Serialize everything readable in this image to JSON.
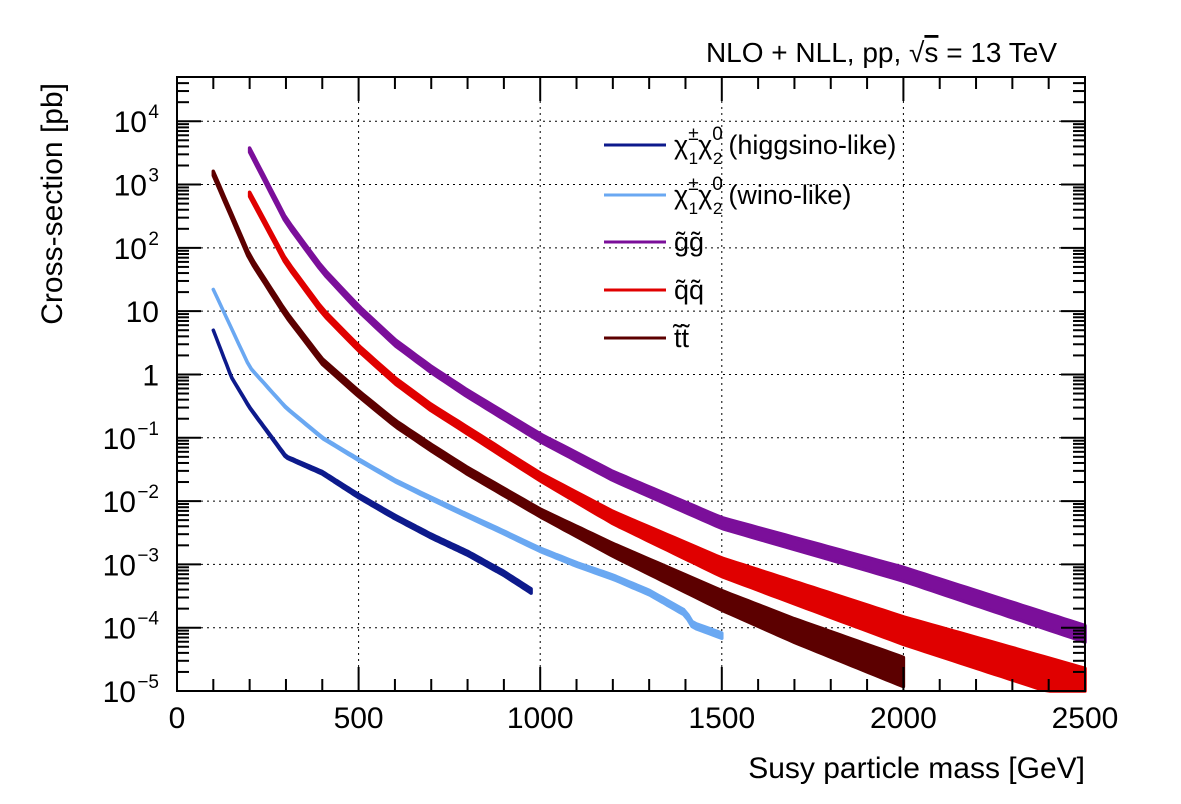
{
  "title_parts": {
    "prefix": "NLO + NLL, pp, ",
    "sqrt": "√",
    "s": "s",
    "suffix": " = 13 TeV"
  },
  "chart_data": {
    "type": "line",
    "xlabel": "Susy particle mass [GeV]",
    "ylabel": "Cross-section [pb]",
    "xlim": [
      0,
      2500
    ],
    "ylim": [
      1e-05,
      50000.0
    ],
    "yscale": "log",
    "grid": true,
    "legend_position": "top-right",
    "x_ticks": [
      {
        "value": 0,
        "label": "0"
      },
      {
        "value": 500,
        "label": "500"
      },
      {
        "value": 1000,
        "label": "1000"
      },
      {
        "value": 1500,
        "label": "1500"
      },
      {
        "value": 2000,
        "label": "2000"
      },
      {
        "value": 2500,
        "label": "2500"
      }
    ],
    "y_ticks": [
      {
        "value": 1e-05,
        "base": "10",
        "exp": "−5"
      },
      {
        "value": 0.0001,
        "base": "10",
        "exp": "−4"
      },
      {
        "value": 0.001,
        "base": "10",
        "exp": "−3"
      },
      {
        "value": 0.01,
        "base": "10",
        "exp": "−2"
      },
      {
        "value": 0.1,
        "base": "10",
        "exp": "−1"
      },
      {
        "value": 1,
        "base": "1",
        "exp": ""
      },
      {
        "value": 10,
        "base": "10",
        "exp": ""
      },
      {
        "value": 100,
        "base": "10",
        "exp": "2"
      },
      {
        "value": 1000,
        "base": "10",
        "exp": "3"
      },
      {
        "value": 10000,
        "base": "10",
        "exp": "4"
      }
    ],
    "series": [
      {
        "key": "higgsino",
        "name": "χ̃₁±χ̃₂⁰ (higgsino-like)",
        "legend_sym": "χ",
        "legend_sup1": "±",
        "legend_sub1": "1",
        "legend_sup2": "0",
        "legend_sub2": "2",
        "legend_suffix": "(higgsino-like)",
        "color": "#0d1a8c",
        "points": [
          [
            100,
            5.0
          ],
          [
            150,
            0.9
          ],
          [
            200,
            0.3
          ],
          [
            300,
            0.05
          ],
          [
            400,
            0.028
          ],
          [
            500,
            0.012
          ],
          [
            600,
            0.0056
          ],
          [
            700,
            0.0028
          ],
          [
            800,
            0.0015
          ],
          [
            900,
            0.00072
          ],
          [
            975,
            0.00038
          ]
        ],
        "band": [
          [
            100,
            1.0
          ],
          [
            500,
            1.06
          ],
          [
            975,
            1.08
          ]
        ]
      },
      {
        "key": "wino",
        "name": "χ̃₁±χ̃₂⁰ (wino-like)",
        "legend_sym": "χ",
        "legend_sup1": "±",
        "legend_sub1": "1",
        "legend_sup2": "0",
        "legend_sub2": "2",
        "legend_suffix": "(wino-like)",
        "color": "#6aa8f2",
        "points": [
          [
            100,
            22
          ],
          [
            200,
            1.3
          ],
          [
            300,
            0.3
          ],
          [
            400,
            0.1
          ],
          [
            500,
            0.045
          ],
          [
            600,
            0.021
          ],
          [
            700,
            0.011
          ],
          [
            800,
            0.0059
          ],
          [
            900,
            0.0032
          ],
          [
            1000,
            0.0017
          ],
          [
            1100,
            0.001
          ],
          [
            1200,
            0.00063
          ],
          [
            1300,
            0.00036
          ],
          [
            1400,
            0.00017
          ],
          [
            1420,
            0.00011
          ],
          [
            1500,
            7.5e-05
          ]
        ],
        "band": [
          [
            100,
            1.0
          ],
          [
            1000,
            1.06
          ],
          [
            1500,
            1.1
          ]
        ]
      },
      {
        "key": "gluino",
        "name": "g̃g̃",
        "legend_sym": "g̃g̃",
        "color": "#7b0f9a",
        "points": [
          [
            200,
            3500
          ],
          [
            300,
            270
          ],
          [
            400,
            45
          ],
          [
            500,
            11
          ],
          [
            600,
            3.2
          ],
          [
            700,
            1.2
          ],
          [
            800,
            0.5
          ],
          [
            1000,
            0.1
          ],
          [
            1200,
            0.025
          ],
          [
            1500,
            0.0045
          ],
          [
            2000,
            0.0007
          ],
          [
            2500,
            8e-05
          ]
        ],
        "band": [
          [
            200,
            1.08
          ],
          [
            1000,
            1.15
          ],
          [
            2500,
            1.35
          ]
        ]
      },
      {
        "key": "squark",
        "name": "q̃q̃",
        "legend_sym": "q̃q̃",
        "color": "#e00000",
        "points": [
          [
            200,
            700
          ],
          [
            300,
            60
          ],
          [
            400,
            10
          ],
          [
            500,
            2.6
          ],
          [
            600,
            0.8
          ],
          [
            700,
            0.3
          ],
          [
            800,
            0.13
          ],
          [
            1000,
            0.024
          ],
          [
            1200,
            0.0055
          ],
          [
            1500,
            0.0009
          ],
          [
            2000,
            9e-05
          ],
          [
            2500,
            1.2e-05
          ]
        ],
        "band": [
          [
            200,
            1.08
          ],
          [
            1000,
            1.15
          ],
          [
            2500,
            1.9
          ]
        ]
      },
      {
        "key": "stop",
        "name": "t̃t̃",
        "legend_sym": "t̃t̃",
        "color": "#5c0000",
        "points": [
          [
            100,
            1500
          ],
          [
            200,
            70
          ],
          [
            300,
            9
          ],
          [
            400,
            1.6
          ],
          [
            500,
            0.5
          ],
          [
            600,
            0.17
          ],
          [
            700,
            0.07
          ],
          [
            800,
            0.03
          ],
          [
            1000,
            0.0065
          ],
          [
            1200,
            0.0017
          ],
          [
            1500,
            0.00027
          ],
          [
            1700,
            9e-05
          ],
          [
            2000,
            2e-05
          ]
        ],
        "band": [
          [
            100,
            1.08
          ],
          [
            1000,
            1.15
          ],
          [
            2000,
            1.7
          ]
        ]
      }
    ]
  }
}
